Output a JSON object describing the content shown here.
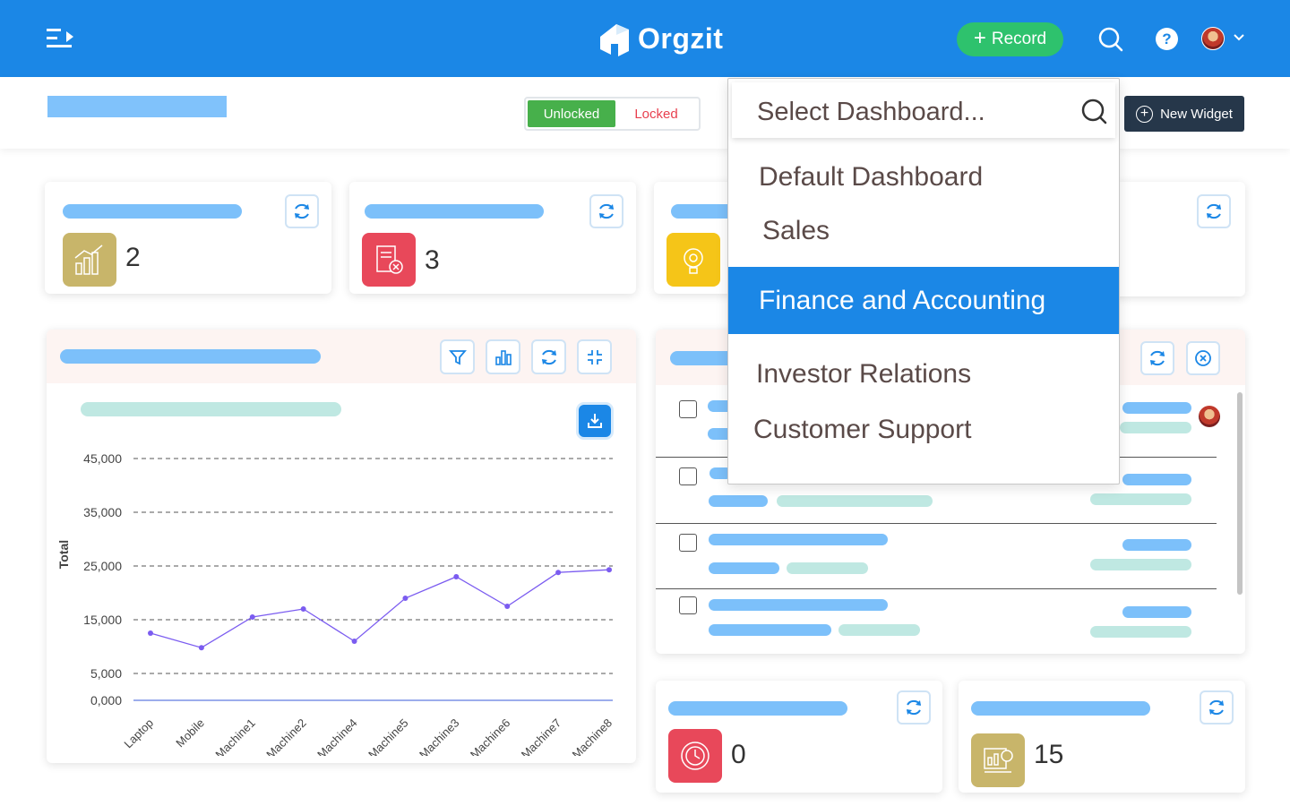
{
  "app": {
    "name": "Orgzit"
  },
  "header": {
    "record_label": "Record",
    "record_plus": "+",
    "help_glyph": "?",
    "icons": [
      "menu-toggle-icon",
      "search-icon",
      "help-icon",
      "chevron-down-icon"
    ]
  },
  "subbar": {
    "lock_toggle": {
      "unlocked_label": "Unlocked",
      "locked_label": "Locked",
      "selected": "Unlocked"
    },
    "new_widget_label": "New Widget"
  },
  "stat_cards": [
    {
      "value": "2",
      "icon": "growth-chart-icon",
      "icon_color": "#c8b56a"
    },
    {
      "value": "3",
      "icon": "rejected-document-icon",
      "icon_color": "#e8485a"
    },
    {
      "value": "",
      "icon": "idea-gear-bulb-icon",
      "icon_color": "#f5c518"
    },
    {
      "value": "",
      "icon": ""
    },
    {
      "value": "0",
      "icon": "time-clock-icon",
      "icon_color": "#e8485a"
    },
    {
      "value": "15",
      "icon": "analytics-board-icon",
      "icon_color": "#c8b56a"
    }
  ],
  "dropdown": {
    "search_placeholder": "Select Dashboard...",
    "items": [
      "Default Dashboard",
      "Sales",
      "Finance and Accounting",
      "Investor Relations",
      "Customer Support"
    ],
    "selected": "Finance and Accounting"
  },
  "colors": {
    "primary": "#1b87e6",
    "success": "#2ec26d",
    "danger": "#e8404f",
    "dark": "#26374a",
    "placeholder_blue": "#7cc0fa",
    "placeholder_teal": "#bfe8e2",
    "line": "#7b5cf0"
  },
  "chart_data": {
    "type": "line",
    "ylabel": "Total",
    "categories": [
      "Laptop",
      "Mobile",
      "Machine1",
      "Machine2",
      "Machine4",
      "Machine5",
      "Machine3",
      "Machine6",
      "Machine7",
      "Machine8"
    ],
    "y_tick_labels": [
      "0,000",
      "5,000",
      "15,000",
      "25,000",
      "35,000",
      "45,000"
    ],
    "series": [
      {
        "values": [
          12500,
          9800,
          15500,
          17000,
          11000,
          19000,
          23000,
          17500,
          23800,
          24300
        ]
      }
    ],
    "ylim": [
      0,
      45000
    ],
    "grid": true
  }
}
